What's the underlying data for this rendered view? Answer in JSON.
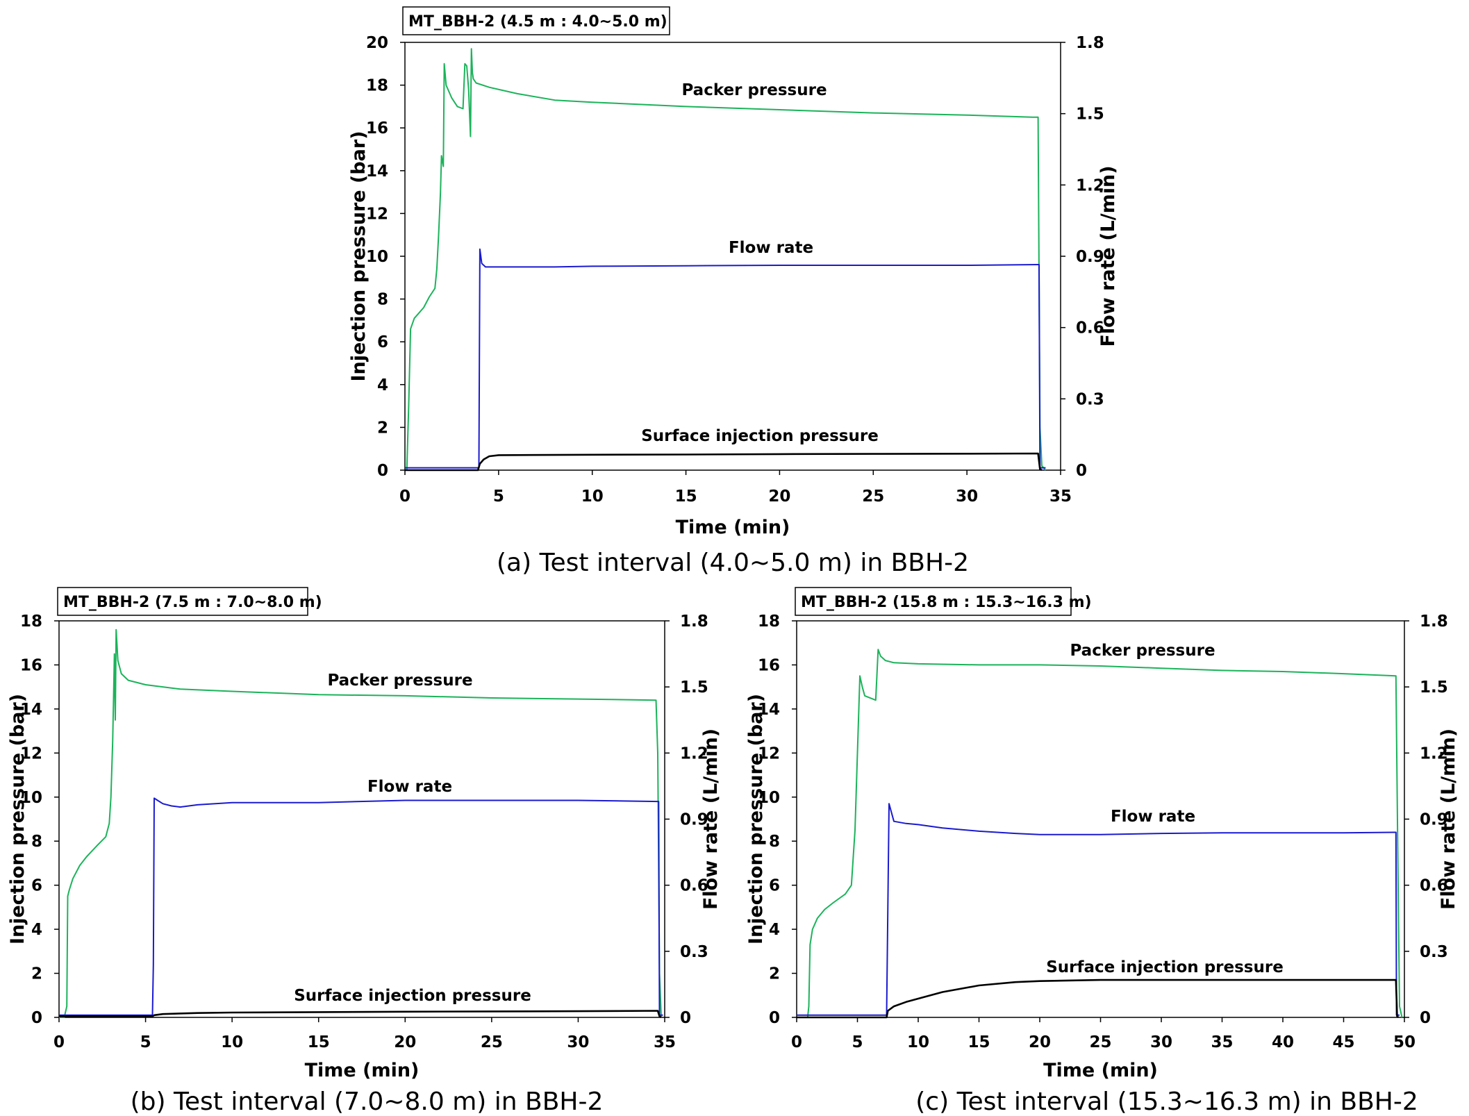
{
  "colors": {
    "packer": "#1bb35a",
    "flow": "#1a1ad0",
    "surface": "#000000",
    "axis": "#000000"
  },
  "chart_data": [
    {
      "type": "line",
      "title": "MT_BBH-2 (4.5 m : 4.0~5.0 m)",
      "caption": "(a) Test interval (4.0~5.0 m) in BBH-2",
      "xlabel": "Time (min)",
      "ylabel": "Injection pressure (bar)",
      "y2label": "Flow rate (L/min)",
      "xlim": [
        0,
        35
      ],
      "ylim": [
        0,
        20
      ],
      "y2lim": [
        0,
        1.8
      ],
      "xticks": [
        "0",
        "5",
        "10",
        "15",
        "20",
        "25",
        "30",
        "35"
      ],
      "yticks": [
        "0",
        "2",
        "4",
        "6",
        "8",
        "10",
        "12",
        "14",
        "16",
        "18",
        "20"
      ],
      "y2ticks": [
        "0",
        "0.3",
        "0.6",
        "0.9",
        "1.2",
        "1.5",
        "1.8"
      ],
      "series": [
        {
          "name": "Packer pressure",
          "axis": "left",
          "x": [
            0,
            0.1,
            0.2,
            0.3,
            0.5,
            0.7,
            1.0,
            1.3,
            1.6,
            1.7,
            1.8,
            1.9,
            1.95,
            2.05,
            2.1,
            2.2,
            2.5,
            2.8,
            3.1,
            3.2,
            3.3,
            3.4,
            3.5,
            3.55,
            3.6,
            3.65,
            3.8,
            4.5,
            6,
            8,
            10,
            15,
            20,
            25,
            30,
            33.5,
            33.8,
            33.9,
            34,
            34.2
          ],
          "y": [
            0,
            0,
            3,
            6.6,
            7.1,
            7.3,
            7.6,
            8.1,
            8.5,
            9.4,
            11,
            13,
            14.7,
            14.2,
            19,
            18,
            17.4,
            17,
            16.9,
            19,
            18.9,
            17.8,
            15.6,
            19.7,
            18.6,
            18.3,
            18.1,
            17.9,
            17.6,
            17.3,
            17.2,
            17.0,
            16.85,
            16.7,
            16.6,
            16.5,
            16.5,
            2,
            0.2,
            0
          ]
        },
        {
          "name": "Flow rate",
          "axis": "right",
          "x": [
            0,
            3.95,
            4.0,
            4.1,
            4.3,
            5,
            8,
            10,
            15,
            20,
            25,
            30,
            33.8,
            33.85,
            33.9,
            34.2
          ],
          "y": [
            0.01,
            0.01,
            0.93,
            0.87,
            0.855,
            0.855,
            0.855,
            0.858,
            0.86,
            0.862,
            0.862,
            0.862,
            0.865,
            0.865,
            0.01,
            0.01
          ]
        },
        {
          "name": "Surface injection pressure",
          "axis": "left",
          "x": [
            0,
            3.9,
            4.0,
            4.2,
            4.5,
            5,
            10,
            15,
            20,
            25,
            30,
            33.8,
            33.9,
            34
          ],
          "y": [
            0,
            0,
            0.3,
            0.5,
            0.65,
            0.7,
            0.72,
            0.73,
            0.75,
            0.76,
            0.77,
            0.78,
            0.05,
            0
          ]
        }
      ],
      "annotations": [
        "Packer pressure",
        "Flow rate",
        "Surface injection pressure"
      ]
    },
    {
      "type": "line",
      "title": "MT_BBH-2 (7.5 m : 7.0~8.0 m)",
      "caption": "(b) Test interval (7.0~8.0 m) in BBH-2",
      "xlabel": "Time (min)",
      "ylabel": "Injection pressure (bar)",
      "y2label": "Flow rate (L/min)",
      "xlim": [
        0,
        35
      ],
      "ylim": [
        0,
        18
      ],
      "y2lim": [
        0,
        1.8
      ],
      "xticks": [
        "0",
        "5",
        "10",
        "15",
        "20",
        "25",
        "30",
        "35"
      ],
      "yticks": [
        "0",
        "2",
        "4",
        "6",
        "8",
        "10",
        "12",
        "14",
        "16",
        "18"
      ],
      "y2ticks": [
        "0",
        "0.3",
        "0.6",
        "0.9",
        "1.2",
        "1.5",
        "1.8"
      ],
      "series": [
        {
          "name": "Packer pressure",
          "axis": "left",
          "x": [
            0,
            0.3,
            0.45,
            0.5,
            0.6,
            0.8,
            1.2,
            1.6,
            2.2,
            2.7,
            2.9,
            3.0,
            3.1,
            3.15,
            3.2,
            3.25,
            3.3,
            3.4,
            3.6,
            4,
            5,
            7,
            10,
            15,
            20,
            25,
            30,
            34.5,
            34.6,
            34.7,
            34.8
          ],
          "y": [
            0,
            0,
            0.5,
            5.5,
            5.8,
            6.3,
            6.9,
            7.3,
            7.8,
            8.2,
            8.8,
            10,
            12.5,
            14.5,
            16.5,
            13.5,
            17.6,
            16.2,
            15.6,
            15.3,
            15.1,
            14.9,
            14.8,
            14.65,
            14.6,
            14.5,
            14.45,
            14.4,
            12,
            2,
            0
          ]
        },
        {
          "name": "Flow rate",
          "axis": "right",
          "x": [
            0,
            5.4,
            5.45,
            5.5,
            5.6,
            6,
            6.5,
            7,
            8,
            10,
            15,
            20,
            25,
            30,
            34.6,
            34.65,
            34.7,
            34.9
          ],
          "y": [
            0.01,
            0.01,
            0.24,
            0.995,
            0.99,
            0.97,
            0.96,
            0.955,
            0.965,
            0.975,
            0.975,
            0.985,
            0.985,
            0.985,
            0.98,
            0.98,
            0.01,
            0.01
          ]
        },
        {
          "name": "Surface injection pressure",
          "axis": "left",
          "x": [
            0,
            5.4,
            5.5,
            6,
            8,
            10,
            15,
            20,
            25,
            30,
            34.6,
            34.7,
            34.8
          ],
          "y": [
            0.05,
            0.05,
            0.1,
            0.15,
            0.2,
            0.22,
            0.24,
            0.26,
            0.27,
            0.28,
            0.3,
            0.05,
            0
          ]
        }
      ],
      "annotations": [
        "Packer pressure",
        "Flow rate",
        "Surface injection pressure"
      ]
    },
    {
      "type": "line",
      "title": "MT_BBH-2 (15.8 m : 15.3~16.3 m)",
      "caption": "(c) Test interval (15.3~16.3 m) in BBH-2",
      "xlabel": "Time (min)",
      "ylabel": "Injection pressure (bar)",
      "y2label": "Flow rate (L/min)",
      "xlim": [
        0,
        50
      ],
      "ylim": [
        0,
        18
      ],
      "y2lim": [
        0,
        1.8
      ],
      "xticks": [
        "0",
        "5",
        "10",
        "15",
        "20",
        "25",
        "30",
        "35",
        "40",
        "45",
        "50"
      ],
      "yticks": [
        "0",
        "2",
        "4",
        "6",
        "8",
        "10",
        "12",
        "14",
        "16",
        "18"
      ],
      "y2ticks": [
        "0",
        "0.3",
        "0.6",
        "0.9",
        "1.2",
        "1.5",
        "1.8"
      ],
      "series": [
        {
          "name": "Packer pressure",
          "axis": "left",
          "x": [
            0,
            0.9,
            1.0,
            1.1,
            1.3,
            1.7,
            2.3,
            3.0,
            4.0,
            4.5,
            4.8,
            5.0,
            5.2,
            5.4,
            5.6,
            6.5,
            6.6,
            6.7,
            6.9,
            7.3,
            8,
            10,
            15,
            20,
            25,
            30,
            35,
            40,
            45,
            49.3,
            49.5,
            49.6,
            49.8
          ],
          "y": [
            0,
            0,
            0.5,
            3.3,
            4,
            4.5,
            4.9,
            5.2,
            5.6,
            6,
            8.5,
            12,
            15.5,
            15,
            14.6,
            14.4,
            15.5,
            16.7,
            16.4,
            16.2,
            16.1,
            16.05,
            16.0,
            16.0,
            15.95,
            15.85,
            15.75,
            15.7,
            15.6,
            15.5,
            5,
            0.5,
            0
          ]
        },
        {
          "name": "Flow rate",
          "axis": "right",
          "x": [
            0,
            7.4,
            7.5,
            7.6,
            7.8,
            8,
            9,
            10,
            12,
            15,
            18,
            20,
            25,
            30,
            35,
            40,
            45,
            49.2,
            49.3,
            49.35,
            49.6
          ],
          "y": [
            0.01,
            0.01,
            0.5,
            0.97,
            0.93,
            0.89,
            0.88,
            0.875,
            0.86,
            0.845,
            0.835,
            0.83,
            0.83,
            0.835,
            0.838,
            0.838,
            0.838,
            0.84,
            0.84,
            0.01,
            0.01
          ]
        },
        {
          "name": "Surface injection pressure",
          "axis": "left",
          "x": [
            0,
            7.4,
            7.5,
            8,
            9,
            10,
            12,
            15,
            18,
            20,
            25,
            30,
            35,
            40,
            45,
            49.3,
            49.4,
            49.5
          ],
          "y": [
            0,
            0,
            0.3,
            0.5,
            0.7,
            0.85,
            1.15,
            1.45,
            1.6,
            1.65,
            1.7,
            1.7,
            1.7,
            1.7,
            1.7,
            1.7,
            0.05,
            0
          ]
        }
      ],
      "annotations": [
        "Packer pressure",
        "Flow rate",
        "Surface injection pressure"
      ]
    }
  ]
}
